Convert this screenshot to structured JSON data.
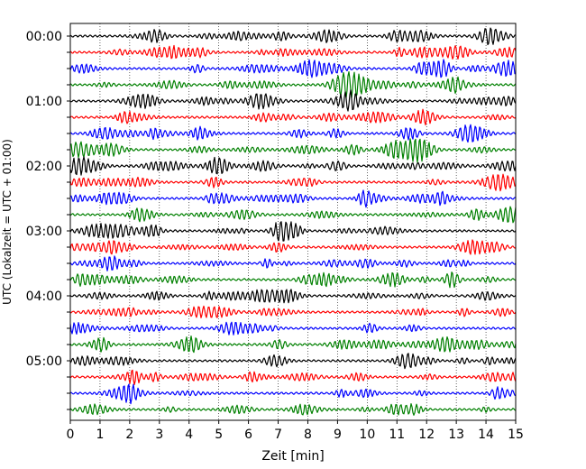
{
  "chart_data": {
    "type": "line",
    "title": "",
    "xlabel": "Zeit  [min]",
    "ylabel": "UTC (Lokalzeit = UTC + 01:00)",
    "xlim": [
      0,
      15
    ],
    "x_ticks": [
      "0",
      "1",
      "2",
      "3",
      "4",
      "5",
      "6",
      "7",
      "8",
      "9",
      "10",
      "11",
      "12",
      "13",
      "14",
      "15"
    ],
    "y_ticks": [
      "00:00",
      "01:00",
      "02:00",
      "03:00",
      "04:00",
      "05:00"
    ],
    "grid": "vertical dotted at each minute",
    "legend": "none",
    "rows_per_hour": 4,
    "row_count": 24,
    "row_colors": [
      "#000000",
      "#ff0000",
      "#0000ff",
      "#008000"
    ],
    "series": [
      {
        "start": "00:00",
        "color": "black"
      },
      {
        "start": "00:15",
        "color": "red"
      },
      {
        "start": "00:30",
        "color": "blue"
      },
      {
        "start": "00:45",
        "color": "green"
      },
      {
        "start": "01:00",
        "color": "black"
      },
      {
        "start": "01:15",
        "color": "red"
      },
      {
        "start": "01:30",
        "color": "blue"
      },
      {
        "start": "01:45",
        "color": "green"
      },
      {
        "start": "02:00",
        "color": "black"
      },
      {
        "start": "02:15",
        "color": "red"
      },
      {
        "start": "02:30",
        "color": "blue"
      },
      {
        "start": "02:45",
        "color": "green"
      },
      {
        "start": "03:00",
        "color": "black"
      },
      {
        "start": "03:15",
        "color": "red"
      },
      {
        "start": "03:30",
        "color": "blue"
      },
      {
        "start": "03:45",
        "color": "green"
      },
      {
        "start": "04:00",
        "color": "black"
      },
      {
        "start": "04:15",
        "color": "red"
      },
      {
        "start": "04:30",
        "color": "blue"
      },
      {
        "start": "04:45",
        "color": "green"
      },
      {
        "start": "05:00",
        "color": "black"
      },
      {
        "start": "05:15",
        "color": "red"
      },
      {
        "start": "05:30",
        "color": "blue"
      },
      {
        "start": "05:45",
        "color": "green"
      }
    ]
  }
}
